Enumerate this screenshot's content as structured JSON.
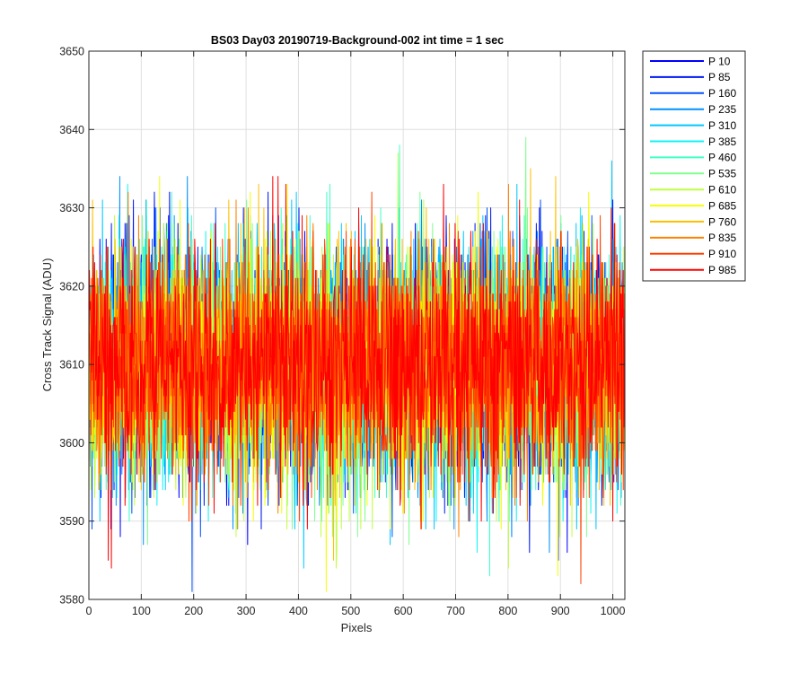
{
  "chart_data": {
    "type": "line",
    "title": "BS03 Day03 20190719-Background-002 int time = 1 sec",
    "xlabel": "Pixels",
    "ylabel": "Cross Track Signal (ADU)",
    "xlim": [
      0,
      1023
    ],
    "ylim": [
      3580,
      3650
    ],
    "x_ticks": [
      "0",
      "100",
      "200",
      "300",
      "400",
      "500",
      "600",
      "700",
      "800",
      "900",
      "1000"
    ],
    "y_ticks": [
      "3580",
      "3590",
      "3600",
      "3610",
      "3620",
      "3630",
      "3640",
      "3650"
    ],
    "grid": true,
    "legend_position": "outside-right-top",
    "signal_profile": {
      "mean": 3610,
      "noise_std": 7.5,
      "min_observed": 3581,
      "max_observed": 3641
    },
    "series": [
      {
        "name": "P 10",
        "color": "#0000ff"
      },
      {
        "name": "P 85",
        "color": "#0018f0"
      },
      {
        "name": "P 160",
        "color": "#0050ff"
      },
      {
        "name": "P 235",
        "color": "#0090ff"
      },
      {
        "name": "P 310",
        "color": "#00c8ff"
      },
      {
        "name": "P 385",
        "color": "#10f4f4"
      },
      {
        "name": "P 460",
        "color": "#40ffc8"
      },
      {
        "name": "P 535",
        "color": "#80ff90"
      },
      {
        "name": "P 610",
        "color": "#c0ff40"
      },
      {
        "name": "P 685",
        "color": "#f4ff00"
      },
      {
        "name": "P 760",
        "color": "#ffc000"
      },
      {
        "name": "P 835",
        "color": "#ff8000"
      },
      {
        "name": "P 910",
        "color": "#ff4000"
      },
      {
        "name": "P 985",
        "color": "#ff0000"
      }
    ]
  }
}
